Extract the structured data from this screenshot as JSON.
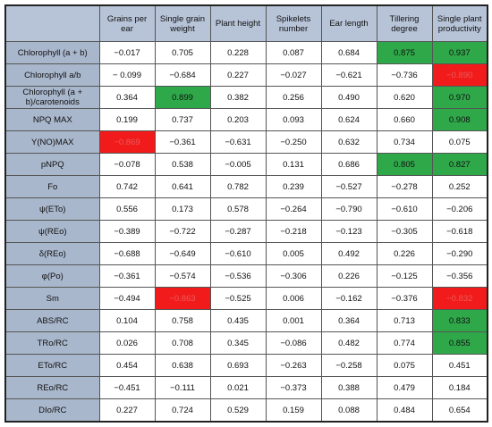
{
  "table": {
    "headers": [
      "Grains per ear",
      "Single grain weight",
      "Plant height",
      "Spikelets number",
      "Ear length",
      "Tillering degree",
      "Single plant productivity"
    ],
    "rows": [
      {
        "label": "Chlorophyll (a + b)",
        "cells": [
          "−0.017",
          "0.705",
          "0.228",
          "0.087",
          "0.684",
          "0.875",
          "0.937"
        ]
      },
      {
        "label": "Chlorophyll a/b",
        "cells": [
          "− 0.099",
          "−0.684",
          "0.227",
          "−0.027",
          "−0.621",
          "−0.736",
          "−0.890"
        ]
      },
      {
        "label": "Chlorophyll (a + b)/carotenoids",
        "cells": [
          "0.364",
          "0.899",
          "0.382",
          "0.256",
          "0.490",
          "0.620",
          "0.970"
        ]
      },
      {
        "label": "NPQ MAX",
        "cells": [
          "0.199",
          "0.737",
          "0.203",
          "0.093",
          "0.624",
          "0.660",
          "0.908"
        ]
      },
      {
        "label": "Y(NO)MAX",
        "cells": [
          "−0.869",
          "−0.361",
          "−0.631",
          "−0.250",
          "0.632",
          "0.734",
          "0.075"
        ]
      },
      {
        "label": "pNPQ",
        "cells": [
          "−0.078",
          "0.538",
          "−0.005",
          "0.131",
          "0.686",
          "0.805",
          "0.827"
        ]
      },
      {
        "label": "Fo",
        "cells": [
          "0.742",
          "0.641",
          "0.782",
          "0.239",
          "−0.527",
          "−0.278",
          "0.252"
        ]
      },
      {
        "label": "ψ(ETo)",
        "cells": [
          "0.556",
          "0.173",
          "0.578",
          "−0.264",
          "−0.790",
          "−0.610",
          "−0.206"
        ]
      },
      {
        "label": "ψ(REo)",
        "cells": [
          "−0.389",
          "−0.722",
          "−0.287",
          "−0.218",
          "−0.123",
          "−0.305",
          "−0.618"
        ]
      },
      {
        "label": "δ(REo)",
        "cells": [
          "−0.688",
          "−0.649",
          "−0.610",
          "0.005",
          "0.492",
          "0.226",
          "−0.290"
        ]
      },
      {
        "label": "φ(Po)",
        "cells": [
          "−0.361",
          "−0.574",
          "−0.536",
          "−0.306",
          "0.226",
          "−0.125",
          "−0.356"
        ]
      },
      {
        "label": "Sm",
        "cells": [
          "−0.494",
          "−0.863",
          "−0.525",
          "0.006",
          "−0.162",
          "−0.376",
          "−0.832"
        ]
      },
      {
        "label": "ABS/RC",
        "cells": [
          "0.104",
          "0.758",
          "0.435",
          "0.001",
          "0.364",
          "0.713",
          "0.833"
        ]
      },
      {
        "label": "TRo/RC",
        "cells": [
          "0.026",
          "0.708",
          "0.345",
          "−0.086",
          "0.482",
          "0.774",
          "0.855"
        ]
      },
      {
        "label": "ETo/RC",
        "cells": [
          "0.454",
          "0.638",
          "0.693",
          "−0.263",
          "−0.258",
          "0.075",
          "0.451"
        ]
      },
      {
        "label": "REo/RC",
        "cells": [
          "−0.451",
          "−0.111",
          "0.021",
          "−0.373",
          "0.388",
          "0.479",
          "0.184"
        ]
      },
      {
        "label": "DIo/RC",
        "cells": [
          "0.227",
          "0.724",
          "0.529",
          "0.159",
          "0.088",
          "0.484",
          "0.654"
        ]
      }
    ]
  }
}
